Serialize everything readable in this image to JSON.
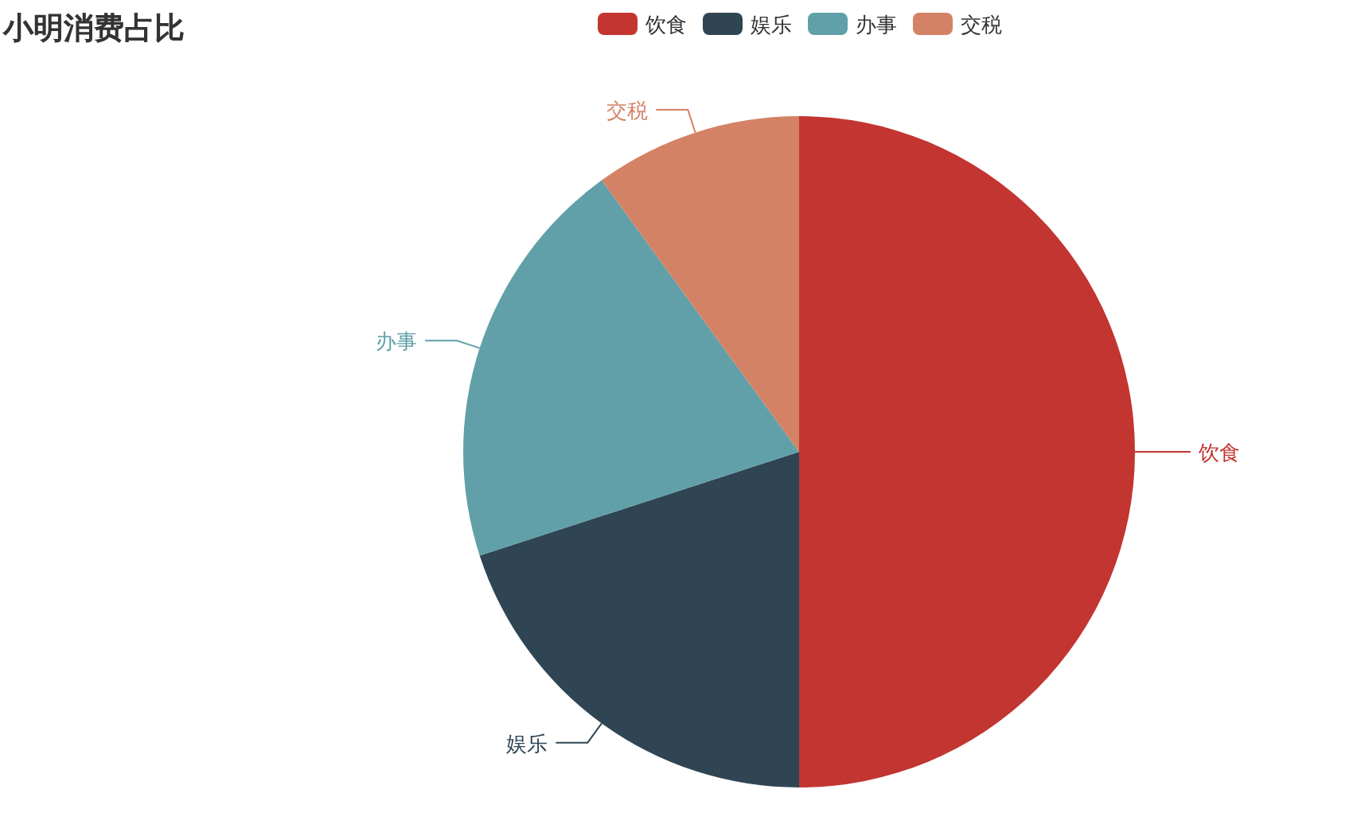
{
  "chart_data": {
    "type": "pie",
    "title": "小明消费占比",
    "categories": [
      "饮食",
      "娱乐",
      "办事",
      "交税"
    ],
    "values": [
      50,
      20,
      20,
      10
    ],
    "colors": [
      "#c23531",
      "#2f4554",
      "#61a0a8",
      "#d48265"
    ],
    "legend": "top"
  }
}
